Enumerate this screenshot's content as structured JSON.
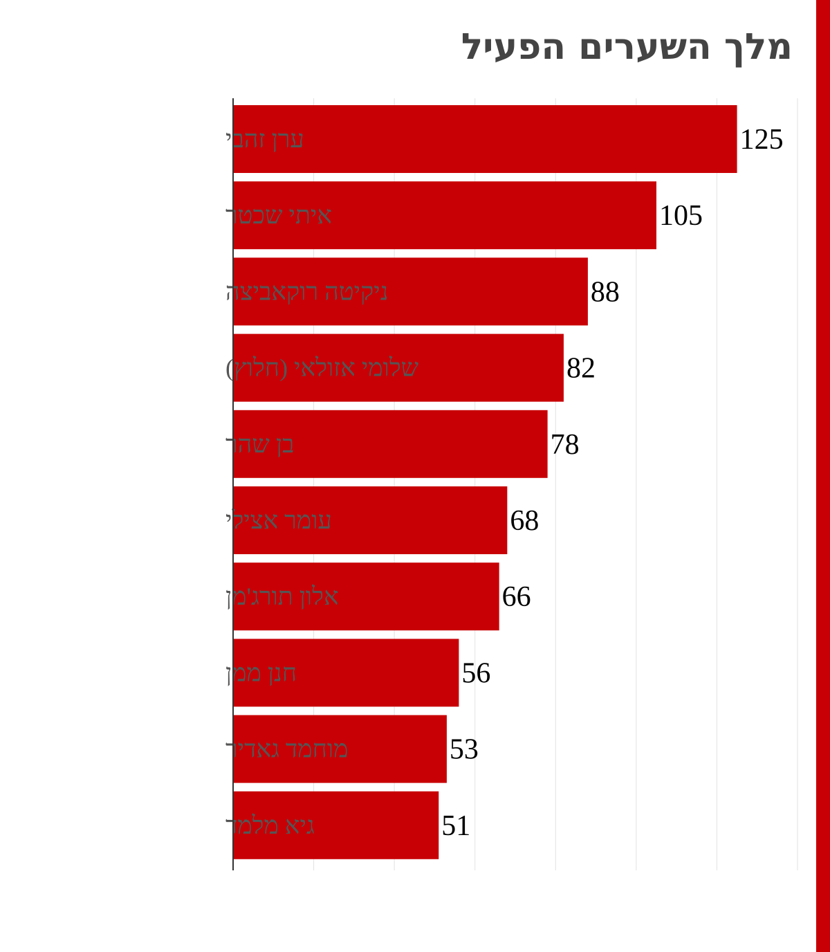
{
  "colors": {
    "bar": "#c80005",
    "accent": "#c80005",
    "title": "#444444",
    "category_text": "#555555",
    "value_text": "#000000",
    "grid": "#e2e2e2"
  },
  "chart_data": {
    "type": "bar",
    "orientation": "horizontal",
    "title": "מלך השערים הפעיל",
    "categories": [
      "ערן זהבי",
      "איתי שכטר",
      "ניקיטה רוקאביצה",
      "שלומי אזולאי (חלוץ)",
      "בן שהר",
      "עומר אצילי",
      "אלון תורג'מן",
      "חנן ממן",
      "מוחמד גאדיר",
      "גיא מלמד"
    ],
    "values": [
      125,
      105,
      88,
      82,
      78,
      68,
      66,
      56,
      53,
      51
    ],
    "xlim": [
      0,
      140
    ],
    "grid": true,
    "data_labels": true
  }
}
